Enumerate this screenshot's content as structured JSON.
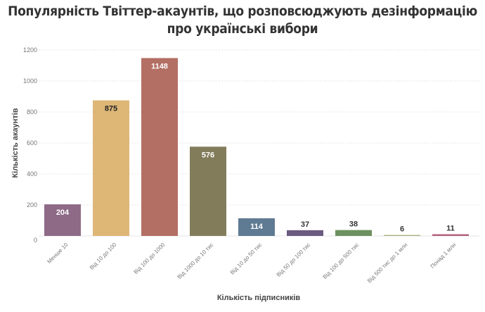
{
  "chart_data": {
    "type": "bar",
    "title": "Популярність Твіттер-акаунтів, що розповсюджують дезінформацію про українські вибори",
    "xlabel": "Кількість підписників",
    "ylabel": "Кількість акаунтів",
    "ylim": [
      0,
      1200
    ],
    "yticks": [
      "0",
      "200",
      "400",
      "600",
      "800",
      "1000",
      "1200"
    ],
    "grid": true,
    "categories": [
      "Менше 10",
      "Від 10 до 100",
      "Від 100 до 1000",
      "Від 1000 до 10 тис",
      "Від 10 до 50 тис",
      "Від 50 до 100 тис",
      "Від 100 до 500 тис",
      "Від 500 тис до 1 млн",
      "Понад 1 млн"
    ],
    "values": [
      204,
      875,
      1148,
      576,
      114,
      37,
      38,
      6,
      11
    ],
    "value_labels": [
      "204",
      "875",
      "1148",
      "576",
      "114",
      "37",
      "38",
      "6",
      "11"
    ],
    "colors": [
      "#8e6a86",
      "#deb777",
      "#b36f64",
      "#827c5b",
      "#5f7a93",
      "#6b5a80",
      "#6d9160",
      "#a5b07f",
      "#b0607a"
    ],
    "label_colors": [
      "#ffffff",
      "#222222",
      "#ffffff",
      "#ffffff",
      "#ffffff",
      "#333333",
      "#333333",
      "#333333",
      "#333333"
    ]
  }
}
